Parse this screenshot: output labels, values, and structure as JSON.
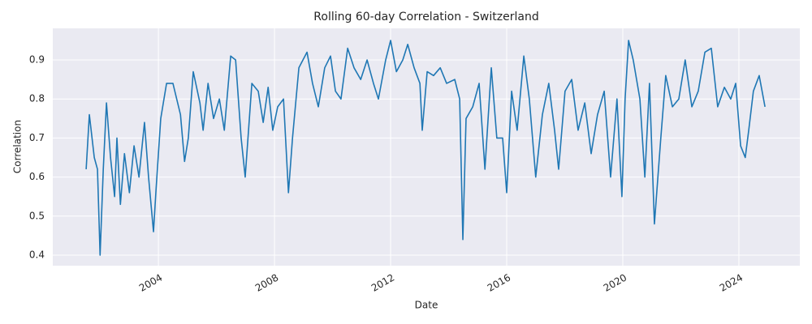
{
  "chart_data": {
    "type": "line",
    "title": "Rolling 60-day Correlation - Switzerland",
    "x_label": "Date",
    "y_label": "Correlation",
    "x": [
      2001.51,
      2001.62,
      2001.79,
      2001.9,
      2001.99,
      2002.1,
      2002.21,
      2002.35,
      2002.49,
      2002.57,
      2002.69,
      2002.83,
      2003.0,
      2003.16,
      2003.33,
      2003.52,
      2003.66,
      2003.83,
      2003.92,
      2004.08,
      2004.28,
      2004.5,
      2004.76,
      2004.9,
      2005.03,
      2005.2,
      2005.43,
      2005.54,
      2005.71,
      2005.9,
      2006.1,
      2006.27,
      2006.49,
      2006.66,
      2006.85,
      2006.99,
      2007.22,
      2007.44,
      2007.61,
      2007.78,
      2007.94,
      2008.11,
      2008.31,
      2008.48,
      2008.62,
      2008.84,
      2009.12,
      2009.31,
      2009.51,
      2009.73,
      2009.93,
      2010.1,
      2010.29,
      2010.52,
      2010.74,
      2010.97,
      2011.19,
      2011.41,
      2011.58,
      2011.83,
      2012.0,
      2012.2,
      2012.42,
      2012.59,
      2012.81,
      2013.01,
      2013.09,
      2013.26,
      2013.48,
      2013.71,
      2013.93,
      2014.21,
      2014.38,
      2014.49,
      2014.6,
      2014.83,
      2015.05,
      2015.25,
      2015.47,
      2015.66,
      2015.86,
      2016.0,
      2016.17,
      2016.36,
      2016.59,
      2016.78,
      2017.0,
      2017.23,
      2017.45,
      2017.65,
      2017.79,
      2018.01,
      2018.24,
      2018.46,
      2018.69,
      2018.91,
      2019.13,
      2019.36,
      2019.58,
      2019.8,
      2019.97,
      2020.08,
      2020.2,
      2020.36,
      2020.59,
      2020.76,
      2020.92,
      2021.09,
      2021.31,
      2021.48,
      2021.71,
      2021.93,
      2022.15,
      2022.38,
      2022.6,
      2022.83,
      2023.05,
      2023.27,
      2023.5,
      2023.72,
      2023.89,
      2024.06,
      2024.22,
      2024.34,
      2024.5,
      2024.7,
      2024.9
    ],
    "series": [
      {
        "name": "Correlation",
        "color": "#1f77b4",
        "values": [
          0.62,
          0.76,
          0.65,
          0.62,
          0.4,
          0.62,
          0.79,
          0.65,
          0.55,
          0.7,
          0.53,
          0.66,
          0.56,
          0.68,
          0.6,
          0.74,
          0.6,
          0.46,
          0.57,
          0.75,
          0.84,
          0.84,
          0.76,
          0.64,
          0.7,
          0.87,
          0.79,
          0.72,
          0.84,
          0.75,
          0.8,
          0.72,
          0.91,
          0.9,
          0.7,
          0.6,
          0.84,
          0.82,
          0.74,
          0.83,
          0.72,
          0.78,
          0.8,
          0.56,
          0.7,
          0.88,
          0.92,
          0.84,
          0.78,
          0.88,
          0.91,
          0.82,
          0.8,
          0.93,
          0.88,
          0.85,
          0.9,
          0.84,
          0.8,
          0.9,
          0.95,
          0.87,
          0.9,
          0.94,
          0.88,
          0.84,
          0.72,
          0.87,
          0.86,
          0.88,
          0.84,
          0.85,
          0.8,
          0.44,
          0.75,
          0.78,
          0.84,
          0.62,
          0.88,
          0.7,
          0.7,
          0.56,
          0.82,
          0.72,
          0.91,
          0.8,
          0.6,
          0.76,
          0.84,
          0.72,
          0.62,
          0.82,
          0.85,
          0.72,
          0.79,
          0.66,
          0.76,
          0.82,
          0.6,
          0.8,
          0.55,
          0.8,
          0.95,
          0.9,
          0.8,
          0.6,
          0.84,
          0.48,
          0.7,
          0.86,
          0.78,
          0.8,
          0.9,
          0.78,
          0.82,
          0.92,
          0.93,
          0.78,
          0.83,
          0.8,
          0.84,
          0.68,
          0.65,
          0.72,
          0.82,
          0.86,
          0.78
        ]
      }
    ],
    "xlim": [
      2000.36,
      2026.1
    ],
    "xticks": [
      2004,
      2008,
      2012,
      2016,
      2020,
      2024
    ],
    "ylim": [
      0.373,
      0.981
    ],
    "yticks": [
      0.4,
      0.5,
      0.6,
      0.7,
      0.8,
      0.9
    ],
    "grid": true
  }
}
